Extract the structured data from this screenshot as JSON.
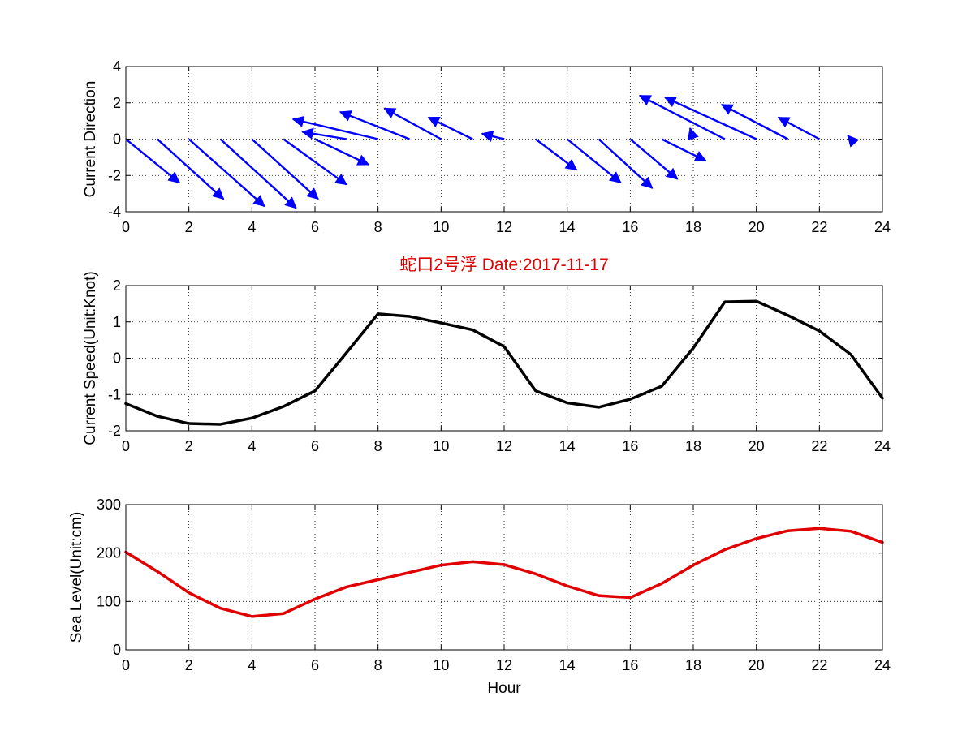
{
  "figure": {
    "title": "蛇口2号浮   Date:2017-11-17",
    "title_color": "#e00000",
    "background": "#ffffff"
  },
  "chart_data": [
    {
      "type": "quiver",
      "ylabel": "Current Direction",
      "xlabel": "",
      "xlim": [
        0,
        24
      ],
      "ylim": [
        -4,
        4
      ],
      "xticks": [
        0,
        2,
        4,
        6,
        8,
        10,
        12,
        14,
        16,
        18,
        20,
        22,
        24
      ],
      "yticks": [
        -4,
        -2,
        0,
        2,
        4
      ],
      "grid": true,
      "color": "#0000ff",
      "arrows": [
        {
          "x": 0,
          "y": 0,
          "u": 1.7,
          "v": -2.4
        },
        {
          "x": 1,
          "y": 0,
          "u": 2.1,
          "v": -3.3
        },
        {
          "x": 2,
          "y": 0,
          "u": 2.4,
          "v": -3.7
        },
        {
          "x": 3,
          "y": 0,
          "u": 2.4,
          "v": -3.8
        },
        {
          "x": 4,
          "y": 0,
          "u": 2.1,
          "v": -3.3
        },
        {
          "x": 5,
          "y": 0,
          "u": 2.0,
          "v": -2.5
        },
        {
          "x": 6,
          "y": 0,
          "u": 1.7,
          "v": -1.4
        },
        {
          "x": 7,
          "y": 0,
          "u": -1.4,
          "v": 0.4
        },
        {
          "x": 8,
          "y": 0,
          "u": -2.7,
          "v": 1.1
        },
        {
          "x": 9,
          "y": 0,
          "u": -2.2,
          "v": 1.5
        },
        {
          "x": 10,
          "y": 0,
          "u": -1.8,
          "v": 1.7
        },
        {
          "x": 11,
          "y": 0,
          "u": -1.4,
          "v": 1.2
        },
        {
          "x": 12,
          "y": 0,
          "u": -0.7,
          "v": 0.3
        },
        {
          "x": 13,
          "y": 0,
          "u": 1.3,
          "v": -1.7
        },
        {
          "x": 14,
          "y": 0,
          "u": 1.7,
          "v": -2.4
        },
        {
          "x": 15,
          "y": 0,
          "u": 1.7,
          "v": -2.7
        },
        {
          "x": 16,
          "y": 0,
          "u": 1.5,
          "v": -2.2
        },
        {
          "x": 17,
          "y": 0,
          "u": 1.4,
          "v": -1.2
        },
        {
          "x": 18,
          "y": 0,
          "u": -0.1,
          "v": 0.6
        },
        {
          "x": 19,
          "y": 0,
          "u": -2.7,
          "v": 2.4
        },
        {
          "x": 20,
          "y": 0,
          "u": -2.9,
          "v": 2.3
        },
        {
          "x": 21,
          "y": 0,
          "u": -2.1,
          "v": 1.9
        },
        {
          "x": 22,
          "y": 0,
          "u": -1.3,
          "v": 1.2
        },
        {
          "x": 23,
          "y": 0,
          "u": -0.1,
          "v": 0.2
        }
      ]
    },
    {
      "type": "line",
      "ylabel": "Current Speed(Unit:Knot)",
      "xlabel": "",
      "xlim": [
        0,
        24
      ],
      "ylim": [
        -2,
        2
      ],
      "xticks": [
        0,
        2,
        4,
        6,
        8,
        10,
        12,
        14,
        16,
        18,
        20,
        22,
        24
      ],
      "yticks": [
        -2,
        -1,
        0,
        1,
        2
      ],
      "grid": true,
      "color": "#000000",
      "x": [
        0,
        1,
        2,
        3,
        4,
        5,
        6,
        7,
        8,
        9,
        10,
        11,
        12,
        13,
        14,
        15,
        16,
        17,
        18,
        19,
        20,
        21,
        22,
        23,
        24
      ],
      "y": [
        -1.25,
        -1.6,
        -1.8,
        -1.82,
        -1.65,
        -1.33,
        -0.9,
        0.15,
        1.22,
        1.15,
        0.97,
        0.78,
        0.32,
        -0.9,
        -1.23,
        -1.35,
        -1.13,
        -0.77,
        0.28,
        1.55,
        1.57,
        1.18,
        0.75,
        0.1,
        -1.1
      ]
    },
    {
      "type": "line",
      "ylabel": "Sea Level(Unit:cm)",
      "xlabel": "Hour",
      "xlim": [
        0,
        24
      ],
      "ylim": [
        0,
        300
      ],
      "xticks": [
        0,
        2,
        4,
        6,
        8,
        10,
        12,
        14,
        16,
        18,
        20,
        22,
        24
      ],
      "yticks": [
        0,
        100,
        200,
        300
      ],
      "grid": true,
      "color": "#e00000",
      "x": [
        0,
        1,
        2,
        3,
        4,
        5,
        6,
        7,
        8,
        9,
        10,
        11,
        12,
        13,
        14,
        15,
        16,
        17,
        18,
        19,
        20,
        21,
        22,
        23,
        24
      ],
      "y": [
        202,
        162,
        118,
        86,
        69,
        75,
        105,
        130,
        145,
        160,
        175,
        182,
        176,
        157,
        132,
        112,
        108,
        137,
        175,
        207,
        230,
        246,
        251,
        245,
        222
      ]
    }
  ]
}
